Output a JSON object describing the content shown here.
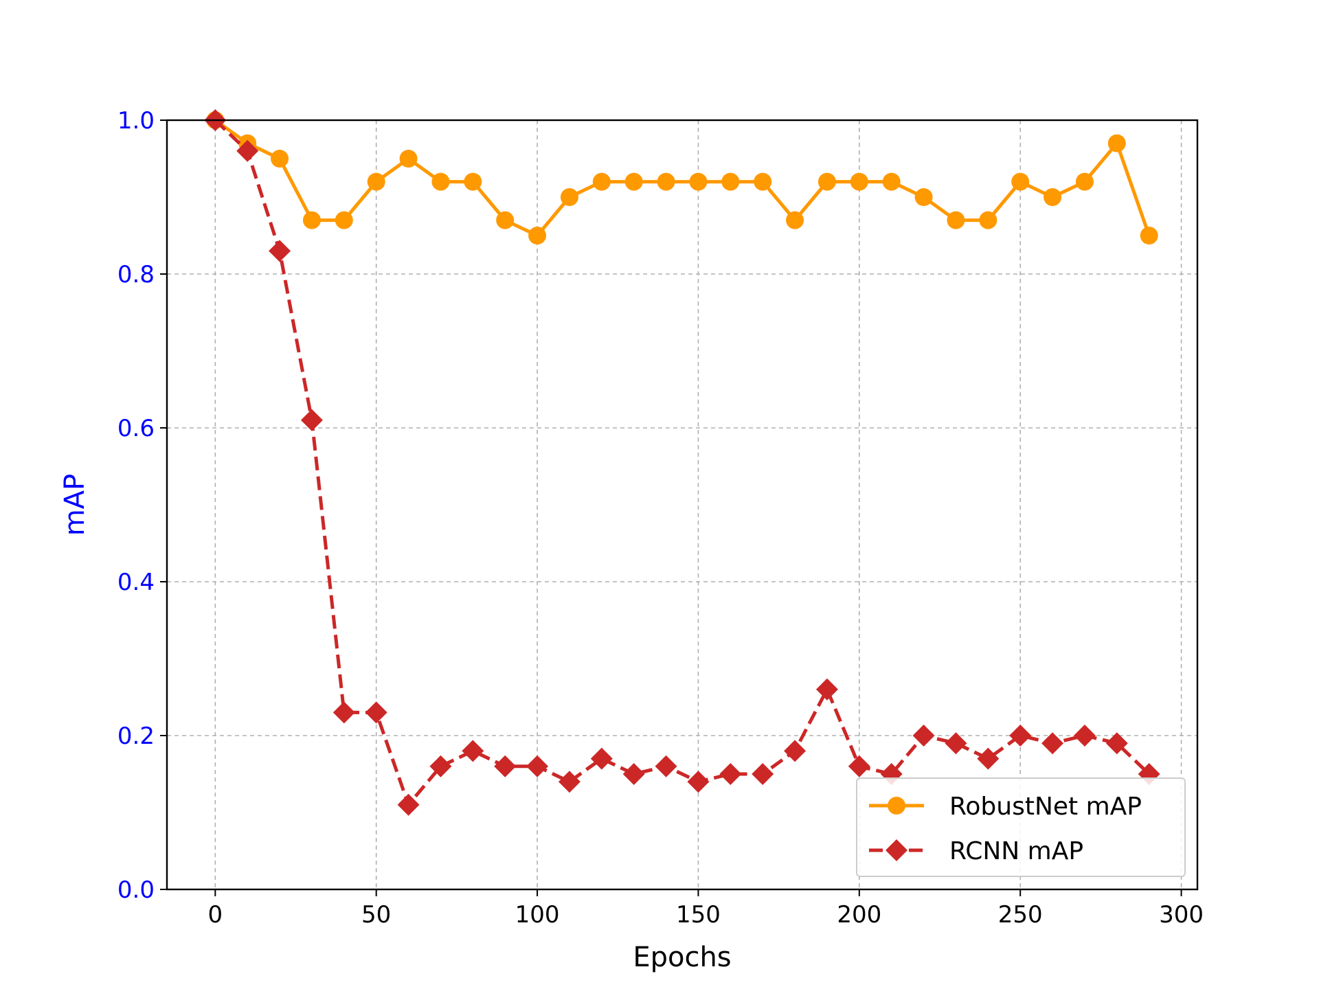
{
  "chart_data": {
    "type": "line",
    "title": "",
    "xlabel": "Epochs",
    "ylabel": "mAP",
    "ylabel_color": "#0000ff",
    "ytick_color": "#0000ff",
    "xlim": [
      -15,
      305
    ],
    "ylim": [
      0.0,
      1.0
    ],
    "xticks": [
      0,
      50,
      100,
      150,
      200,
      250,
      300
    ],
    "xtick_labels": [
      "0",
      "50",
      "100",
      "150",
      "200",
      "250",
      "300"
    ],
    "yticks": [
      0.0,
      0.2,
      0.4,
      0.6,
      0.8,
      1.0
    ],
    "ytick_labels": [
      "0.0",
      "0.2",
      "0.4",
      "0.6",
      "0.8",
      "1.0"
    ],
    "grid": true,
    "legend_position": "lower-right",
    "x": [
      0,
      10,
      20,
      30,
      40,
      50,
      60,
      70,
      80,
      90,
      100,
      110,
      120,
      130,
      140,
      150,
      160,
      170,
      180,
      190,
      200,
      210,
      220,
      230,
      240,
      250,
      260,
      270,
      280,
      290
    ],
    "series": [
      {
        "name": "RobustNet mAP",
        "color": "#ff9900",
        "marker": "circle",
        "linestyle": "solid",
        "values": [
          1.0,
          0.97,
          0.95,
          0.87,
          0.87,
          0.92,
          0.95,
          0.92,
          0.92,
          0.87,
          0.85,
          0.9,
          0.92,
          0.92,
          0.92,
          0.92,
          0.92,
          0.92,
          0.87,
          0.92,
          0.92,
          0.92,
          0.9,
          0.87,
          0.87,
          0.92,
          0.9,
          0.92,
          0.97,
          0.85
        ]
      },
      {
        "name": "RCNN mAP",
        "color": "#cc2727",
        "marker": "diamond",
        "linestyle": "dashed",
        "values": [
          1.0,
          0.96,
          0.83,
          0.61,
          0.23,
          0.23,
          0.11,
          0.16,
          0.18,
          0.16,
          0.16,
          0.14,
          0.17,
          0.15,
          0.16,
          0.14,
          0.15,
          0.15,
          0.18,
          0.26,
          0.16,
          0.15,
          0.2,
          0.19,
          0.17,
          0.2,
          0.19,
          0.2,
          0.19,
          0.15
        ]
      }
    ]
  }
}
